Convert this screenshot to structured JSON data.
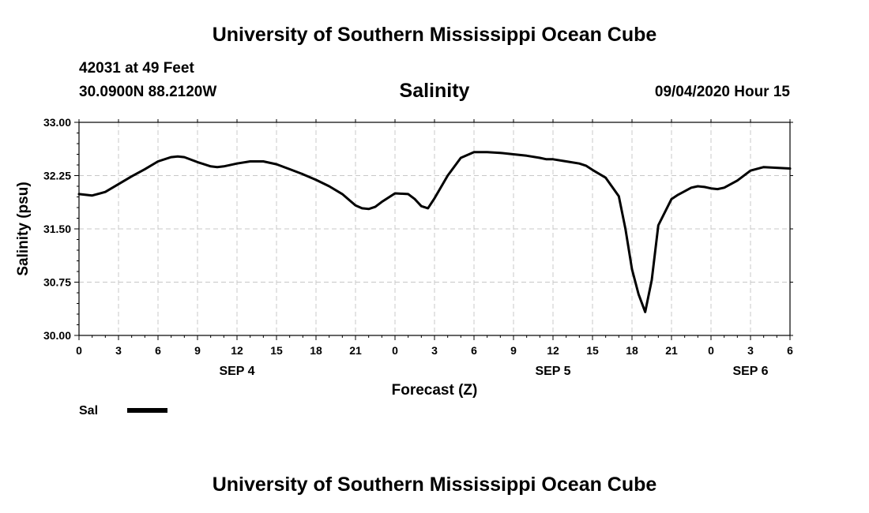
{
  "header": {
    "title": "University of Southern Mississippi Ocean Cube",
    "station": "42031 at 49 Feet",
    "coords": "30.0900N 88.2120W",
    "variable_title": "Salinity",
    "datetime": "09/04/2020 Hour 15"
  },
  "footer": {
    "title": "University of Southern Mississippi Ocean Cube"
  },
  "chart_data": {
    "type": "line",
    "xlabel": "Forecast (Z)",
    "ylabel": "Salinity (psu)",
    "ylim": [
      30.0,
      33.0
    ],
    "xlim": [
      0,
      54
    ],
    "y_ticks": [
      "30.00",
      "30.75",
      "31.50",
      "32.25",
      "33.00"
    ],
    "x_tick_labels": [
      "0",
      "3",
      "6",
      "9",
      "12",
      "15",
      "18",
      "21",
      "0",
      "3",
      "6",
      "9",
      "12",
      "15",
      "18",
      "21",
      "0",
      "3",
      "6"
    ],
    "date_labels": [
      {
        "label": "SEP 4",
        "x": 12
      },
      {
        "label": "SEP 5",
        "x": 36
      },
      {
        "label": "SEP 6",
        "x": 51
      }
    ],
    "grid": true,
    "line_color": "#000000",
    "legend": {
      "placement": "bottom-left",
      "entries": [
        "Sal"
      ]
    },
    "series": [
      {
        "name": "Sal",
        "x": [
          0,
          1,
          2,
          3,
          4,
          5,
          6,
          7,
          7.5,
          8,
          9,
          10,
          10.5,
          11,
          12,
          13,
          14,
          15,
          16,
          17,
          18,
          19,
          20,
          21,
          21.5,
          22,
          22.5,
          23,
          24,
          25,
          25.5,
          26,
          26.5,
          27,
          28,
          29,
          30,
          31,
          32,
          33,
          34,
          35,
          35.5,
          36,
          37,
          38,
          38.5,
          39,
          40,
          41,
          41.5,
          42,
          42.5,
          43,
          43.5,
          44,
          45,
          45.5,
          46,
          46.5,
          47,
          47.5,
          48,
          48.5,
          49,
          50,
          51,
          52,
          53,
          54
        ],
        "values": [
          31.99,
          31.97,
          32.02,
          32.13,
          32.24,
          32.34,
          32.45,
          32.51,
          32.52,
          32.51,
          32.44,
          32.38,
          32.37,
          32.38,
          32.42,
          32.45,
          32.45,
          32.41,
          32.34,
          32.27,
          32.19,
          32.1,
          31.99,
          31.83,
          31.79,
          31.78,
          31.81,
          31.88,
          32.0,
          31.99,
          31.92,
          31.82,
          31.79,
          31.93,
          32.25,
          32.5,
          32.58,
          32.58,
          32.57,
          32.55,
          32.53,
          32.5,
          32.48,
          32.48,
          32.45,
          32.42,
          32.39,
          32.33,
          32.22,
          31.96,
          31.5,
          30.93,
          30.58,
          30.33,
          30.78,
          31.55,
          31.92,
          31.98,
          32.03,
          32.08,
          32.1,
          32.09,
          32.07,
          32.06,
          32.08,
          32.18,
          32.32,
          32.37,
          32.36,
          32.35
        ]
      }
    ]
  }
}
